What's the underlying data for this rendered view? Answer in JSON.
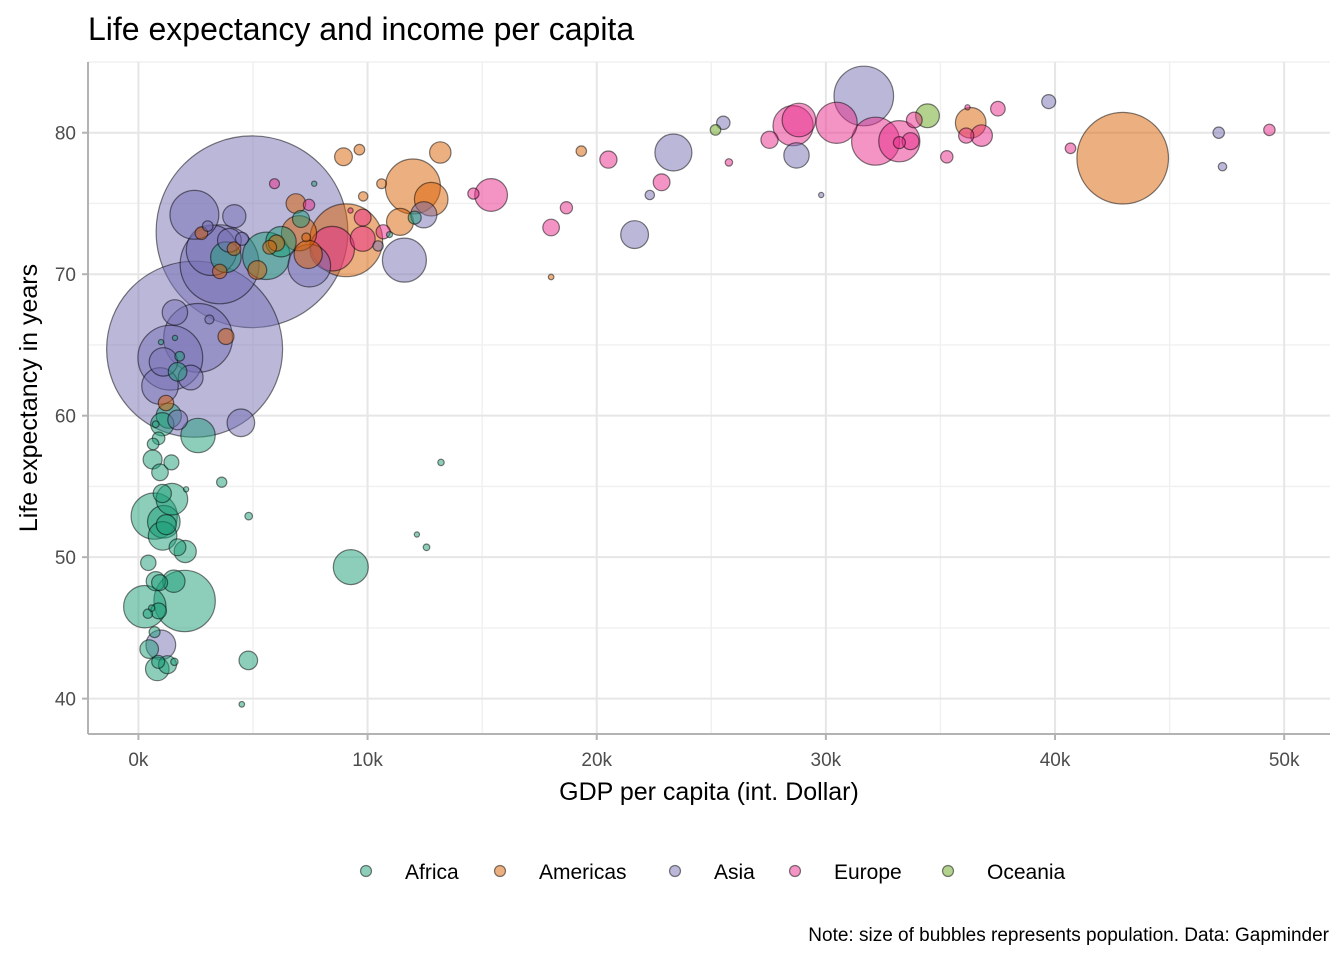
{
  "chart_data": {
    "type": "scatter",
    "title": "Life expectancy and income per capita",
    "xlabel": "GDP per capita (int. Dollar)",
    "ylabel": "Life expectancy in years",
    "caption": "Note: size of bubbles represents population. Data: Gapminder",
    "xlim": [
      -2200,
      52000
    ],
    "ylim": [
      37.5,
      85.0
    ],
    "x_ticks": [
      0,
      10000,
      20000,
      30000,
      40000,
      50000
    ],
    "x_tick_labels": [
      "0k",
      "10k",
      "20k",
      "30k",
      "40k",
      "50k"
    ],
    "y_ticks": [
      40,
      50,
      60,
      70,
      80
    ],
    "y_tick_labels": [
      "40",
      "50",
      "60",
      "70",
      "80"
    ],
    "grid": true,
    "legend_position": "bottom",
    "size_variable": "population",
    "colors": {
      "Africa": "#1b9e77",
      "Americas": "#d95f02",
      "Asia": "#7570b3",
      "Europe": "#e7298a",
      "Oceania": "#66a61e"
    },
    "series": [
      {
        "name": "Africa",
        "points": [
          {
            "x": 6223,
            "y": 72.3,
            "pop": 33.3
          },
          {
            "x": 4797,
            "y": 42.7,
            "pop": 12.4
          },
          {
            "x": 1441,
            "y": 56.7,
            "pop": 8.1
          },
          {
            "x": 12570,
            "y": 50.7,
            "pop": 1.6
          },
          {
            "x": 1217,
            "y": 52.3,
            "pop": 14.3
          },
          {
            "x": 430,
            "y": 49.6,
            "pop": 8.4
          },
          {
            "x": 2042,
            "y": 50.4,
            "pop": 17.7
          },
          {
            "x": 706,
            "y": 44.7,
            "pop": 4.4
          },
          {
            "x": 1704,
            "y": 50.7,
            "pop": 10.2
          },
          {
            "x": 986,
            "y": 65.2,
            "pop": 0.7
          },
          {
            "x": 278,
            "y": 46.5,
            "pop": 64.6
          },
          {
            "x": 3633,
            "y": 55.3,
            "pop": 3.8
          },
          {
            "x": 1545,
            "y": 48.3,
            "pop": 18.0
          },
          {
            "x": 2082,
            "y": 54.8,
            "pop": 0.5
          },
          {
            "x": 5581,
            "y": 71.3,
            "pop": 80.3
          },
          {
            "x": 12154,
            "y": 51.6,
            "pop": 0.6
          },
          {
            "x": 641,
            "y": 58.0,
            "pop": 4.9
          },
          {
            "x": 690,
            "y": 52.9,
            "pop": 76.5
          },
          {
            "x": 13206,
            "y": 56.7,
            "pop": 1.5
          },
          {
            "x": 753,
            "y": 59.4,
            "pop": 1.7
          },
          {
            "x": 1327,
            "y": 60.0,
            "pop": 22.9
          },
          {
            "x": 943,
            "y": 56.0,
            "pop": 9.9
          },
          {
            "x": 579,
            "y": 46.4,
            "pop": 1.5
          },
          {
            "x": 1463,
            "y": 54.1,
            "pop": 35.6
          },
          {
            "x": 1569,
            "y": 42.6,
            "pop": 2.0
          },
          {
            "x": 415,
            "y": 46.0,
            "pop": 3.2
          },
          {
            "x": 12057,
            "y": 74.0,
            "pop": 6.0
          },
          {
            "x": 1044,
            "y": 59.4,
            "pop": 19.2
          },
          {
            "x": 759,
            "y": 48.3,
            "pop": 13.3
          },
          {
            "x": 1042,
            "y": 54.5,
            "pop": 12.0
          },
          {
            "x": 1803,
            "y": 64.2,
            "pop": 3.3
          },
          {
            "x": 10957,
            "y": 72.8,
            "pop": 1.3
          },
          {
            "x": 3820,
            "y": 71.2,
            "pop": 33.8
          },
          {
            "x": 824,
            "y": 42.1,
            "pop": 20.0
          },
          {
            "x": 4811,
            "y": 52.9,
            "pop": 2.1
          },
          {
            "x": 620,
            "y": 56.9,
            "pop": 12.9
          },
          {
            "x": 2014,
            "y": 46.9,
            "pop": 135.0
          },
          {
            "x": 882,
            "y": 46.2,
            "pop": 9.0
          },
          {
            "x": 1598,
            "y": 65.5,
            "pop": 0.2
          },
          {
            "x": 1712,
            "y": 63.1,
            "pop": 12.3
          },
          {
            "x": 863,
            "y": 42.6,
            "pop": 6.1
          },
          {
            "x": 926,
            "y": 48.2,
            "pop": 9.1
          },
          {
            "x": 9270,
            "y": 49.3,
            "pop": 44.0
          },
          {
            "x": 2602,
            "y": 58.6,
            "pop": 42.3
          },
          {
            "x": 4513,
            "y": 39.6,
            "pop": 1.1
          },
          {
            "x": 1107,
            "y": 52.5,
            "pop": 38.1
          },
          {
            "x": 883,
            "y": 58.4,
            "pop": 5.7
          },
          {
            "x": 7093,
            "y": 73.9,
            "pop": 10.3
          },
          {
            "x": 1056,
            "y": 51.5,
            "pop": 29.2
          },
          {
            "x": 1271,
            "y": 42.4,
            "pop": 11.7
          },
          {
            "x": 470,
            "y": 43.5,
            "pop": 12.3
          },
          {
            "x": 7670,
            "y": 76.4,
            "pop": 0.8
          }
        ]
      },
      {
        "name": "Americas",
        "points": [
          {
            "x": 12779,
            "y": 75.3,
            "pop": 40.3
          },
          {
            "x": 3822,
            "y": 65.6,
            "pop": 9.1
          },
          {
            "x": 9066,
            "y": 72.4,
            "pop": 190.0
          },
          {
            "x": 36319,
            "y": 80.7,
            "pop": 33.4
          },
          {
            "x": 13172,
            "y": 78.6,
            "pop": 16.3
          },
          {
            "x": 7007,
            "y": 72.9,
            "pop": 44.2
          },
          {
            "x": 9645,
            "y": 78.8,
            "pop": 4.1
          },
          {
            "x": 8948,
            "y": 78.3,
            "pop": 11.4
          },
          {
            "x": 6025,
            "y": 72.2,
            "pop": 9.3
          },
          {
            "x": 6873,
            "y": 75.0,
            "pop": 13.8
          },
          {
            "x": 5728,
            "y": 71.9,
            "pop": 6.9
          },
          {
            "x": 5186,
            "y": 70.3,
            "pop": 12.6
          },
          {
            "x": 1202,
            "y": 60.9,
            "pop": 8.5
          },
          {
            "x": 3548,
            "y": 70.2,
            "pop": 7.5
          },
          {
            "x": 7321,
            "y": 72.6,
            "pop": 2.8
          },
          {
            "x": 11978,
            "y": 76.2,
            "pop": 108.7
          },
          {
            "x": 2749,
            "y": 72.9,
            "pop": 5.7
          },
          {
            "x": 9809,
            "y": 75.5,
            "pop": 3.2
          },
          {
            "x": 4173,
            "y": 71.8,
            "pop": 6.7
          },
          {
            "x": 7409,
            "y": 71.4,
            "pop": 28.7
          },
          {
            "x": 19329,
            "y": 78.7,
            "pop": 3.9
          },
          {
            "x": 18009,
            "y": 69.8,
            "pop": 1.1
          },
          {
            "x": 42952,
            "y": 78.2,
            "pop": 301.1
          },
          {
            "x": 10611,
            "y": 76.4,
            "pop": 3.4
          },
          {
            "x": 11416,
            "y": 73.7,
            "pop": 26.1
          }
        ]
      },
      {
        "name": "Asia",
        "points": [
          {
            "x": 975,
            "y": 43.8,
            "pop": 31.9
          },
          {
            "x": 29796,
            "y": 75.6,
            "pop": 0.7
          },
          {
            "x": 1391,
            "y": 64.1,
            "pop": 150.4
          },
          {
            "x": 1714,
            "y": 59.7,
            "pop": 14.1
          },
          {
            "x": 4959,
            "y": 73.0,
            "pop": 1318.7
          },
          {
            "x": 39725,
            "y": 82.2,
            "pop": 6.98
          },
          {
            "x": 2452,
            "y": 64.7,
            "pop": 1110.4
          },
          {
            "x": 3541,
            "y": 70.7,
            "pop": 223.5
          },
          {
            "x": 11606,
            "y": 71.0,
            "pop": 69.5
          },
          {
            "x": 4471,
            "y": 59.5,
            "pop": 27.5
          },
          {
            "x": 25523,
            "y": 80.7,
            "pop": 6.4
          },
          {
            "x": 31656,
            "y": 82.6,
            "pop": 127.5
          },
          {
            "x": 4519,
            "y": 72.5,
            "pop": 6.1
          },
          {
            "x": 1593,
            "y": 67.3,
            "pop": 23.3
          },
          {
            "x": 23348,
            "y": 78.6,
            "pop": 49.0
          },
          {
            "x": 47307,
            "y": 77.6,
            "pop": 2.5
          },
          {
            "x": 10461,
            "y": 72.0,
            "pop": 3.9
          },
          {
            "x": 12452,
            "y": 74.2,
            "pop": 24.8
          },
          {
            "x": 3096,
            "y": 66.8,
            "pop": 2.9
          },
          {
            "x": 944,
            "y": 62.1,
            "pop": 47.8
          },
          {
            "x": 1091,
            "y": 63.8,
            "pop": 28.9
          },
          {
            "x": 22316,
            "y": 75.6,
            "pop": 3.2
          },
          {
            "x": 2606,
            "y": 65.5,
            "pop": 169.3
          },
          {
            "x": 3190,
            "y": 71.7,
            "pop": 91.1
          },
          {
            "x": 21655,
            "y": 72.8,
            "pop": 27.6
          },
          {
            "x": 47143,
            "y": 80.0,
            "pop": 4.6
          },
          {
            "x": 3970,
            "y": 72.4,
            "pop": 20.4
          },
          {
            "x": 4185,
            "y": 74.1,
            "pop": 19.3
          },
          {
            "x": 28718,
            "y": 78.4,
            "pop": 23.2
          },
          {
            "x": 7458,
            "y": 70.6,
            "pop": 65.1
          },
          {
            "x": 2442,
            "y": 74.2,
            "pop": 85.3
          },
          {
            "x": 3025,
            "y": 73.4,
            "pop": 4.0
          },
          {
            "x": 2281,
            "y": 62.7,
            "pop": 22.2
          }
        ]
      },
      {
        "name": "Europe",
        "points": [
          {
            "x": 5937,
            "y": 76.4,
            "pop": 3.6
          },
          {
            "x": 36126,
            "y": 79.8,
            "pop": 8.2
          },
          {
            "x": 33693,
            "y": 79.4,
            "pop": 10.4
          },
          {
            "x": 7446,
            "y": 74.9,
            "pop": 4.6
          },
          {
            "x": 10681,
            "y": 73.0,
            "pop": 7.3
          },
          {
            "x": 14619,
            "y": 75.7,
            "pop": 4.5
          },
          {
            "x": 22833,
            "y": 76.5,
            "pop": 10.2
          },
          {
            "x": 35278,
            "y": 78.3,
            "pop": 5.5
          },
          {
            "x": 33207,
            "y": 79.3,
            "pop": 5.2
          },
          {
            "x": 30470,
            "y": 80.7,
            "pop": 61.1
          },
          {
            "x": 32170,
            "y": 79.4,
            "pop": 82.4
          },
          {
            "x": 27538,
            "y": 79.5,
            "pop": 10.7
          },
          {
            "x": 18009,
            "y": 73.3,
            "pop": 10.0
          },
          {
            "x": 36181,
            "y": 81.8,
            "pop": 0.3
          },
          {
            "x": 40676,
            "y": 78.9,
            "pop": 4.1
          },
          {
            "x": 28570,
            "y": 80.5,
            "pop": 58.1
          },
          {
            "x": 9254,
            "y": 74.5,
            "pop": 0.7
          },
          {
            "x": 36798,
            "y": 79.8,
            "pop": 16.6
          },
          {
            "x": 49357,
            "y": 80.2,
            "pop": 4.6
          },
          {
            "x": 15390,
            "y": 75.6,
            "pop": 38.5
          },
          {
            "x": 20510,
            "y": 78.1,
            "pop": 10.6
          },
          {
            "x": 9787,
            "y": 72.5,
            "pop": 22.3
          },
          {
            "x": 9787,
            "y": 74.0,
            "pop": 10.2
          },
          {
            "x": 18678,
            "y": 74.7,
            "pop": 5.4
          },
          {
            "x": 25768,
            "y": 77.9,
            "pop": 2.0
          },
          {
            "x": 28821,
            "y": 80.9,
            "pop": 40.4
          },
          {
            "x": 33860,
            "y": 80.9,
            "pop": 9.0
          },
          {
            "x": 37506,
            "y": 81.7,
            "pop": 7.6
          },
          {
            "x": 8458,
            "y": 71.8,
            "pop": 71.2
          },
          {
            "x": 33203,
            "y": 79.4,
            "pop": 60.8
          }
        ]
      },
      {
        "name": "Oceania",
        "points": [
          {
            "x": 34435,
            "y": 81.2,
            "pop": 20.4
          },
          {
            "x": 25185,
            "y": 80.2,
            "pop": 4.1
          }
        ]
      }
    ]
  }
}
